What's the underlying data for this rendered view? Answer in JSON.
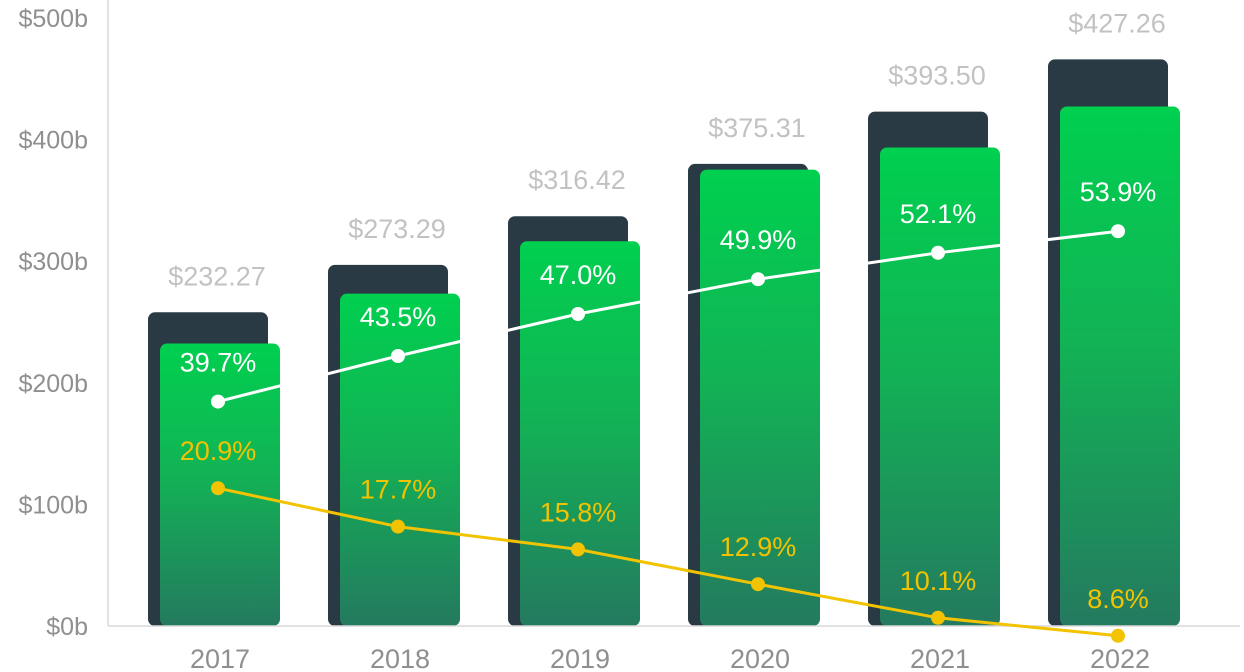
{
  "chart_data": {
    "type": "bar",
    "categories": [
      "2017",
      "2018",
      "2019",
      "2020",
      "2021",
      "2022"
    ],
    "yticks": [
      "$0b",
      "$100b",
      "$200b",
      "$300b",
      "$400b",
      "$500b"
    ],
    "ylim": [
      0,
      500
    ],
    "values": [
      232.27,
      273.29,
      316.42,
      375.31,
      393.5,
      427.26
    ],
    "value_labels": [
      "$232.27",
      "$273.29",
      "$316.42",
      "$375.31",
      "$393.50",
      "$427.26"
    ],
    "shadow_values": [
      258,
      297,
      337,
      380,
      423,
      466
    ],
    "series": [
      {
        "type": "line",
        "color": "#ffffff",
        "values": [
          39.7,
          43.5,
          47.0,
          49.9,
          52.1,
          53.9
        ],
        "labels": [
          "39.7%",
          "43.5%",
          "47.0%",
          "49.9%",
          "52.1%",
          "53.9%"
        ]
      },
      {
        "type": "line",
        "color": "#f2c300",
        "values": [
          20.9,
          17.7,
          15.8,
          12.9,
          10.1,
          8.6
        ],
        "labels": [
          "20.9%",
          "17.7%",
          "15.8%",
          "12.9%",
          "10.1%",
          "8.6%"
        ]
      }
    ],
    "grid": false,
    "colors": {
      "bar_top": "#00d04f",
      "bar_bottom": "#247a5f",
      "shadow": "#2a3a44",
      "axis": "#d9d9d9"
    }
  }
}
